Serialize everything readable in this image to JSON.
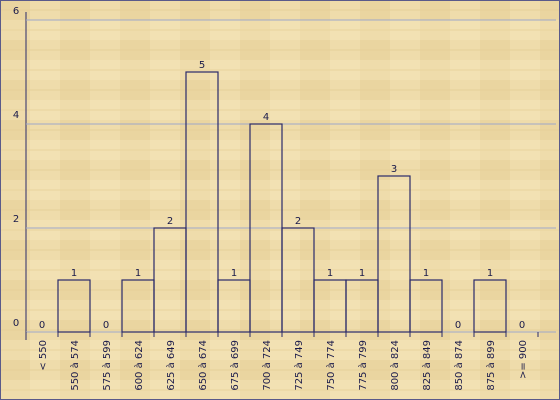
{
  "chart_data": {
    "type": "bar",
    "categories": [
      "< 550",
      "550 à 574",
      "575 à 599",
      "600 à 624",
      "625 à 649",
      "650 à 674",
      "675 à 699",
      "700 à 724",
      "725 à 749",
      "750 à 774",
      "775 à 799",
      "800 à 824",
      "825 à 849",
      "850 à 874",
      "875 à 899",
      ">= 900"
    ],
    "values": [
      0,
      1,
      0,
      1,
      2,
      5,
      1,
      4,
      2,
      1,
      1,
      3,
      1,
      0,
      1,
      0
    ],
    "color": "#2a2a6a",
    "ylim": [
      0,
      6
    ],
    "yticks": [
      0,
      2,
      4,
      6
    ],
    "grid": true
  }
}
